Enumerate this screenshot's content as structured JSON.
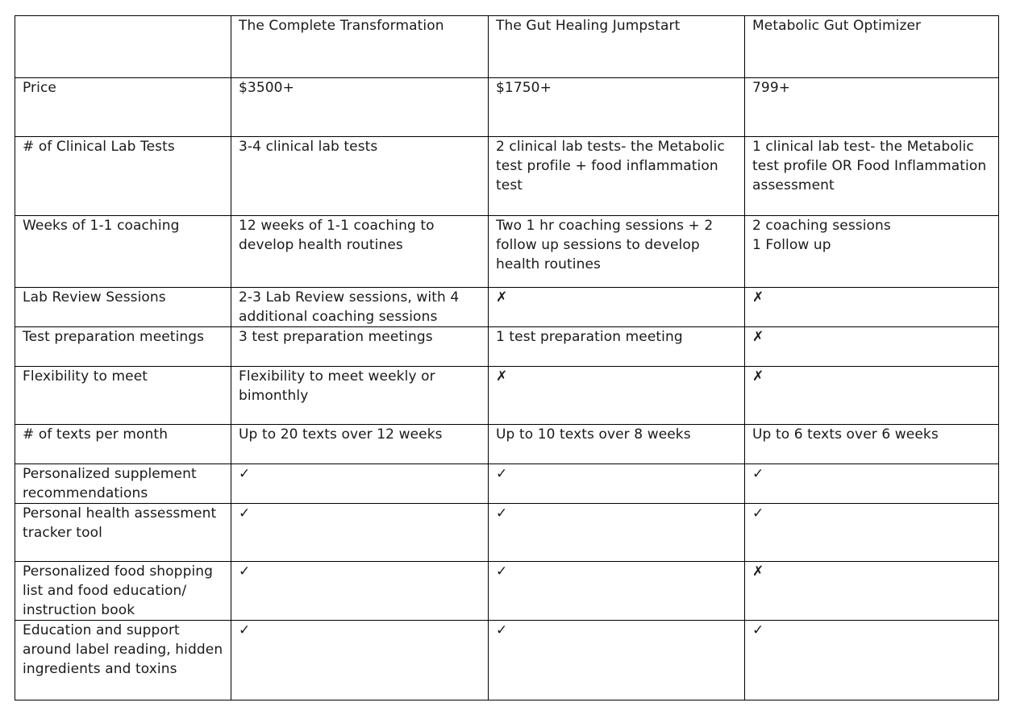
{
  "plans": [
    "The Complete Transformation",
    "The Gut Healing Jumpstart",
    "Metabolic Gut Optimizer"
  ],
  "rows": [
    {
      "label": "Price",
      "cells": [
        "$3500+",
        "$1750+",
        "799+"
      ]
    },
    {
      "label": "# of Clinical Lab Tests",
      "cells": [
        "3-4 clinical lab tests",
        "2 clinical lab tests- the Metabolic test profile + food inflammation test",
        "1 clinical lab test- the Metabolic test profile OR Food Inflammation assessment"
      ]
    },
    {
      "label": "Weeks of 1-1 coaching",
      "cells": [
        "12 weeks of 1-1 coaching to develop health routines",
        "Two 1 hr coaching sessions + 2 follow up sessions to develop health routines",
        "2 coaching sessions\n1 Follow up"
      ]
    },
    {
      "label": "Lab Review Sessions",
      "cells": [
        "2-3 Lab Review sessions, with 4 additional coaching sessions",
        "✗",
        "✗"
      ]
    },
    {
      "label": "Test preparation meetings",
      "cells": [
        "3 test preparation meetings",
        "1 test preparation meeting",
        "✗"
      ]
    },
    {
      "label": "Flexibility to meet",
      "cells": [
        "Flexibility to meet weekly or bimonthly",
        "✗",
        "✗"
      ]
    },
    {
      "label": "# of texts per month",
      "cells": [
        "Up to 20 texts over 12 weeks",
        "Up to 10 texts over 8 weeks",
        "Up to 6 texts over 6 weeks"
      ]
    },
    {
      "label": "Personalized supplement recommendations",
      "cells": [
        "✓",
        "✓",
        "✓"
      ]
    },
    {
      "label": "Personal health assessment tracker tool",
      "cells": [
        "✓",
        "✓",
        "✓"
      ]
    },
    {
      "label": "Personalized food shopping list and food education/ instruction book",
      "cells": [
        "✓",
        "✓",
        "✗"
      ]
    },
    {
      "label": "Education and support around label reading, hidden ingredients and toxins",
      "cells": [
        "✓",
        "✓",
        "✓"
      ]
    }
  ],
  "colors": {
    "label": "#3a1c9e",
    "plan_title": "#3a1496",
    "check": "#3a9a28",
    "cross": "#e4141a"
  }
}
